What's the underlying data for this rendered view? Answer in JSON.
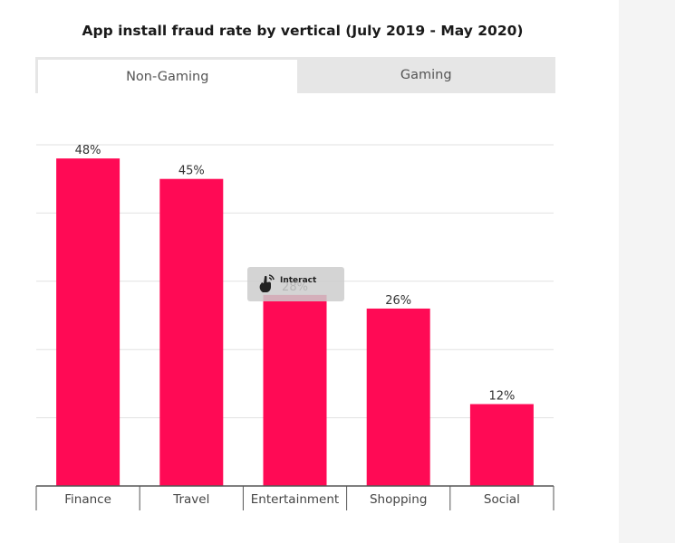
{
  "chart_title": "App install fraud rate by vertical (July 2019 - May 2020)",
  "tabs": [
    {
      "label": "Non-Gaming",
      "active": true
    },
    {
      "label": "Gaming",
      "active": false
    }
  ],
  "interact_badge": {
    "label": "Interact",
    "icon": "hand-pointer-icon"
  },
  "colors": {
    "bar": "#ff0a55",
    "grid": "#e2e2e2",
    "axis": "#555555",
    "tab_inactive": "#e6e6e6",
    "side_panel": "#f4f4f4"
  },
  "chart_data": {
    "type": "bar",
    "title": "App install fraud rate by vertical (July 2019 - May 2020)",
    "categories": [
      "Finance",
      "Travel",
      "Entertainment",
      "Shopping",
      "Social"
    ],
    "values": [
      48,
      45,
      28,
      26,
      12
    ],
    "data_labels": [
      "48%",
      "45%",
      "28%",
      "26%",
      "12%"
    ],
    "xlabel": "",
    "ylabel": "",
    "ylim": [
      0,
      50
    ],
    "grid": true,
    "legend": "none"
  }
}
